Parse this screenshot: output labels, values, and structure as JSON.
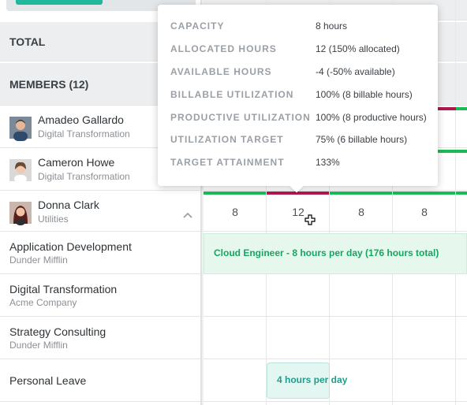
{
  "total_label": "TOTAL",
  "members_label": "MEMBERS (12)",
  "members": [
    {
      "name": "Amadeo Gallardo",
      "team": "Digital Transformation"
    },
    {
      "name": "Cameron Howe",
      "team": "Digital Transformation"
    },
    {
      "name": "Donna Clark",
      "team": "Utilities"
    }
  ],
  "projects": [
    {
      "name": "Application Development",
      "client": "Dunder Mifflin"
    },
    {
      "name": "Digital Transformation",
      "client": "Acme Company"
    },
    {
      "name": "Strategy Consulting",
      "client": "Dunder Mifflin"
    },
    {
      "name": "Personal Leave",
      "client": ""
    }
  ],
  "donna_hours": [
    "8",
    "12",
    "8",
    "8"
  ],
  "assignment_label": "Cloud Engineer - 8 hours per day (176 hours total)",
  "leave_label": "4 hours per day",
  "tooltip": {
    "rows": [
      {
        "label": "CAPACITY",
        "value": "8 hours"
      },
      {
        "label": "ALLOCATED HOURS",
        "value": "12 (150% allocated)"
      },
      {
        "label": "AVAILABLE HOURS",
        "value": "-4 (-50% available)"
      },
      {
        "label": "BILLABLE UTILIZATION",
        "value": "100% (8 billable hours)"
      },
      {
        "label": "PRODUCTIVE UTILIZATION",
        "value": "100% (8 productive hours)"
      },
      {
        "label": "UTILIZATION TARGET",
        "value": "75% (6 billable hours)"
      },
      {
        "label": "TARGET ATTAINMENT",
        "value": "133%"
      }
    ]
  },
  "colors": {
    "over_allocated": "#b0174f",
    "allocated": "#1db954",
    "accent": "#1fb89a"
  }
}
